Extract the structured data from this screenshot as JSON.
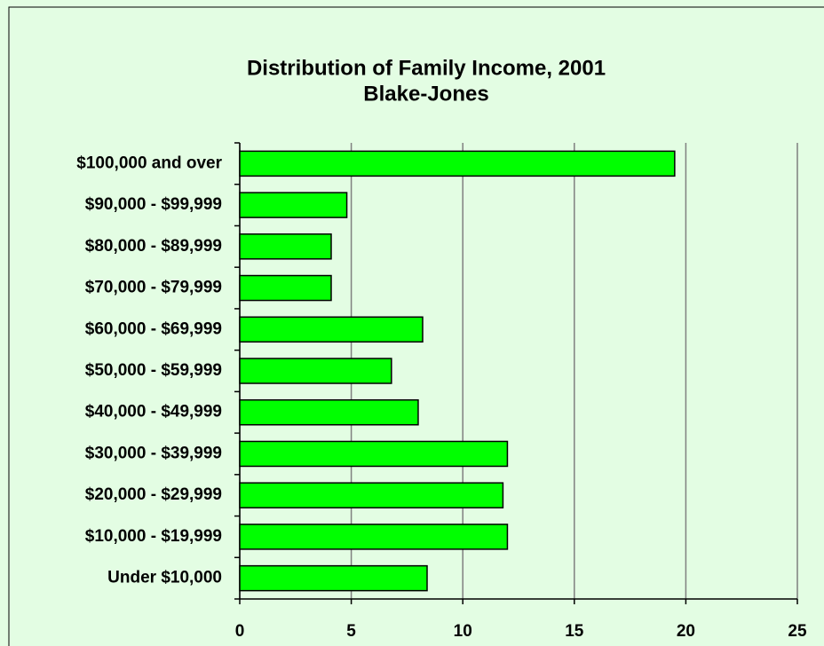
{
  "chart_data": {
    "type": "bar",
    "orientation": "horizontal",
    "title": "Distribution of Family Income, 2001",
    "subtitle": "Blake-Jones",
    "categories": [
      "$100,000 and over",
      "$90,000 - $99,999",
      "$80,000 - $89,999",
      "$70,000 - $79,999",
      "$60,000 - $69,999",
      "$50,000 - $59,999",
      "$40,000 - $49,999",
      "$30,000 - $39,999",
      "$20,000 - $29,999",
      "$10,000 - $19,999",
      "Under $10,000"
    ],
    "values": [
      19.5,
      4.8,
      4.1,
      4.1,
      8.2,
      6.8,
      8.0,
      12.0,
      11.8,
      12.0,
      8.4
    ],
    "color": "#00ff00",
    "xlim": [
      0,
      25
    ],
    "xticks": [
      0,
      5,
      10,
      15,
      20,
      25
    ],
    "grid": true
  }
}
